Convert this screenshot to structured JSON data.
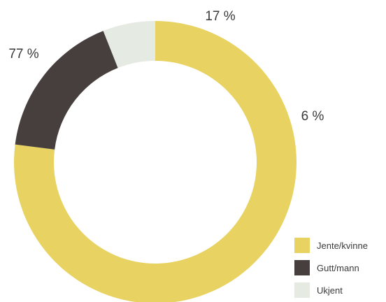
{
  "chart_data": {
    "type": "pie",
    "variant": "donut",
    "categories": [
      "Jente/kvinne",
      "Gutt/mann",
      "Ukjent"
    ],
    "values": [
      77,
      17,
      6
    ],
    "value_labels": [
      "77 %",
      "17 %",
      "6 %"
    ],
    "colors": [
      "#e8d362",
      "#473f3d",
      "#e5eae3"
    ],
    "start": "top, clockwise",
    "legend_position": "bottom-right"
  }
}
